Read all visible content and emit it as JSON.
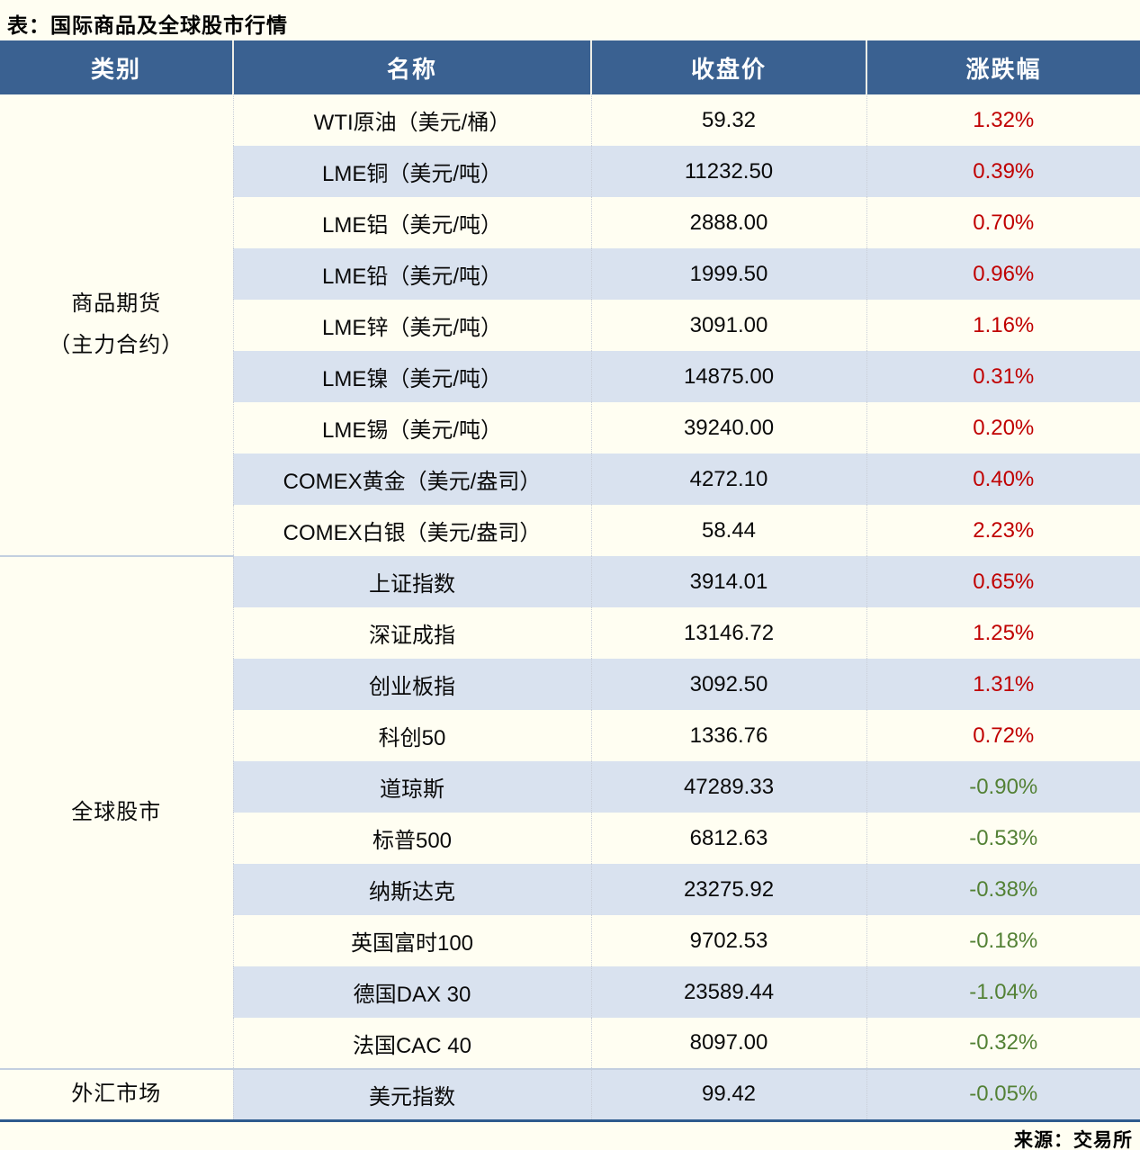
{
  "title": "表：国际商品及全球股市行情",
  "source_note": "来源：交易所",
  "colors": {
    "header_bg": "#3A6191",
    "stripe_bg": "#D9E2EF",
    "page_bg": "#FFFEF2",
    "up_red": "#C00000",
    "down_green": "#538135",
    "bottom_border": "#2E5B8E"
  },
  "chart_data": {
    "type": "table",
    "title": "国际商品及全球股市行情",
    "columns": [
      "类别",
      "名称",
      "收盘价",
      "涨跌幅"
    ],
    "groups": [
      {
        "category": "商品期货（主力合约）",
        "category_lines": [
          "商品期货",
          "（主力合约）"
        ],
        "rows": [
          {
            "name": "WTI原油（美元/桶）",
            "close": "59.32",
            "change": "1.32%",
            "trend": "up"
          },
          {
            "name": "LME铜（美元/吨）",
            "close": "11232.50",
            "change": "0.39%",
            "trend": "up"
          },
          {
            "name": "LME铝（美元/吨）",
            "close": "2888.00",
            "change": "0.70%",
            "trend": "up"
          },
          {
            "name": "LME铅（美元/吨）",
            "close": "1999.50",
            "change": "0.96%",
            "trend": "up"
          },
          {
            "name": "LME锌（美元/吨）",
            "close": "3091.00",
            "change": "1.16%",
            "trend": "up"
          },
          {
            "name": "LME镍（美元/吨）",
            "close": "14875.00",
            "change": "0.31%",
            "trend": "up"
          },
          {
            "name": "LME锡（美元/吨）",
            "close": "39240.00",
            "change": "0.20%",
            "trend": "up"
          },
          {
            "name": "COMEX黄金（美元/盎司）",
            "close": "4272.10",
            "change": "0.40%",
            "trend": "up"
          },
          {
            "name": "COMEX白银（美元/盎司）",
            "close": "58.44",
            "change": "2.23%",
            "trend": "up"
          }
        ]
      },
      {
        "category": "全球股市",
        "category_lines": [
          "全球股市"
        ],
        "rows": [
          {
            "name": "上证指数",
            "close": "3914.01",
            "change": "0.65%",
            "trend": "up"
          },
          {
            "name": "深证成指",
            "close": "13146.72",
            "change": "1.25%",
            "trend": "up"
          },
          {
            "name": "创业板指",
            "close": "3092.50",
            "change": "1.31%",
            "trend": "up"
          },
          {
            "name": "科创50",
            "close": "1336.76",
            "change": "0.72%",
            "trend": "up"
          },
          {
            "name": "道琼斯",
            "close": "47289.33",
            "change": "-0.90%",
            "trend": "down"
          },
          {
            "name": "标普500",
            "close": "6812.63",
            "change": "-0.53%",
            "trend": "down"
          },
          {
            "name": "纳斯达克",
            "close": "23275.92",
            "change": "-0.38%",
            "trend": "down"
          },
          {
            "name": "英国富时100",
            "close": "9702.53",
            "change": "-0.18%",
            "trend": "down"
          },
          {
            "name": "德国DAX 30",
            "close": "23589.44",
            "change": "-1.04%",
            "trend": "down"
          },
          {
            "name": "法国CAC 40",
            "close": "8097.00",
            "change": "-0.32%",
            "trend": "down"
          }
        ]
      },
      {
        "category": "外汇市场",
        "category_lines": [
          "外汇市场"
        ],
        "rows": [
          {
            "name": "美元指数",
            "close": "99.42",
            "change": "-0.05%",
            "trend": "down"
          }
        ]
      }
    ]
  }
}
